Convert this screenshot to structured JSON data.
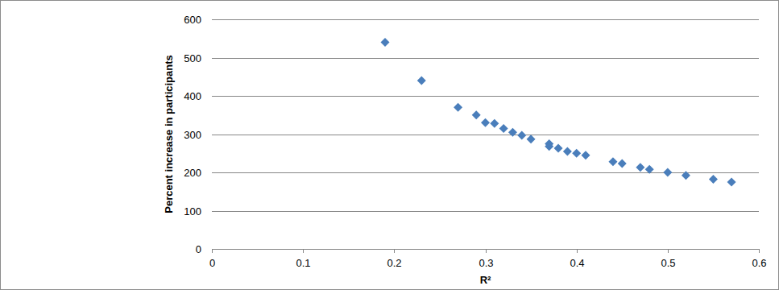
{
  "chart_data": {
    "type": "scatter",
    "x_label": "R²",
    "y_label": "Percent increase in participants",
    "x": [
      0.19,
      0.23,
      0.27,
      0.29,
      0.3,
      0.31,
      0.32,
      0.33,
      0.34,
      0.35,
      0.37,
      0.37,
      0.38,
      0.39,
      0.4,
      0.41,
      0.44,
      0.45,
      0.47,
      0.48,
      0.5,
      0.52,
      0.55,
      0.57
    ],
    "values": [
      540,
      440,
      370,
      350,
      330,
      328,
      315,
      305,
      297,
      287,
      275,
      268,
      263,
      255,
      250,
      245,
      228,
      223,
      213,
      208,
      200,
      192,
      182,
      175
    ],
    "color": "#4a7ebb",
    "marker": "diamond",
    "xlim": [
      0,
      0.6
    ],
    "xticks": [
      0,
      0.1,
      0.2,
      0.3,
      0.4,
      0.5,
      0.6
    ],
    "ylim": [
      0,
      600
    ],
    "yticks": [
      0,
      100,
      200,
      300,
      400,
      500,
      600
    ],
    "grid": true
  }
}
